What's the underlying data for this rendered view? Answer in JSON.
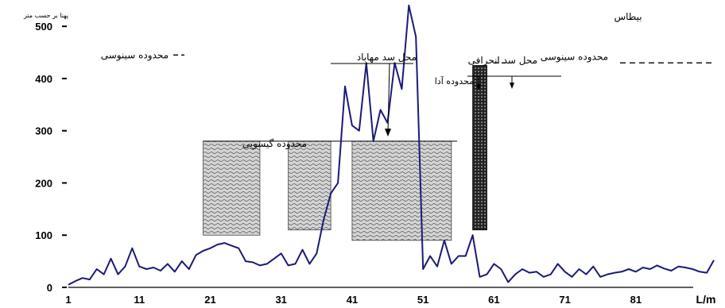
{
  "chart_data": {
    "type": "line",
    "ylabel": "پهنا بر حسب متر",
    "top_right_label": "بیطاس",
    "xlabel_end": "L/m",
    "x_ticks": [
      "1",
      "11",
      "21",
      "31",
      "41",
      "51",
      "61",
      "71",
      "81"
    ],
    "y_ticks": [
      "0",
      "100",
      "200",
      "300",
      "400",
      "500"
    ],
    "xlim": [
      1,
      92
    ],
    "ylim": [
      0,
      520
    ],
    "series": [
      {
        "color": "#1a1a7a",
        "x": [
          1,
          2,
          3,
          4,
          5,
          6,
          7,
          8,
          9,
          10,
          11,
          12,
          13,
          14,
          15,
          16,
          17,
          18,
          19,
          20,
          21,
          22,
          23,
          24,
          25,
          26,
          27,
          28,
          29,
          30,
          31,
          32,
          33,
          34,
          35,
          36,
          37,
          38,
          39,
          40,
          41,
          42,
          43,
          44,
          45,
          46,
          47,
          48,
          49,
          50,
          51,
          52,
          53,
          54,
          55,
          56,
          57,
          58,
          59,
          60,
          61,
          62,
          63,
          64,
          65,
          66,
          67,
          68,
          69,
          70,
          71,
          72,
          73,
          74,
          75,
          76,
          77,
          78,
          79,
          80,
          81,
          82,
          83,
          84,
          85,
          86,
          87,
          88,
          89,
          90,
          91,
          92
        ],
        "values": [
          5,
          12,
          18,
          15,
          35,
          25,
          55,
          25,
          40,
          75,
          40,
          35,
          38,
          32,
          45,
          30,
          50,
          35,
          62,
          70,
          75,
          82,
          85,
          80,
          75,
          50,
          48,
          42,
          45,
          55,
          65,
          42,
          45,
          72,
          45,
          65,
          130,
          180,
          200,
          385,
          310,
          300,
          430,
          280,
          340,
          315,
          430,
          380,
          540,
          480,
          35,
          60,
          40,
          90,
          45,
          60,
          60,
          100,
          20,
          25,
          45,
          35,
          10,
          25,
          35,
          28,
          30,
          20,
          25,
          45,
          30,
          20,
          35,
          25,
          40,
          20,
          25,
          28,
          30,
          35,
          30,
          38,
          35,
          42,
          36,
          32,
          40,
          38,
          35,
          30,
          28,
          52
        ]
      }
    ],
    "hatched_regions": [
      {
        "x0": 20,
        "x1": 28,
        "y0": 100,
        "y1": 280
      },
      {
        "x0": 32,
        "x1": 38,
        "y0": 110,
        "y1": 280
      },
      {
        "x0": 41,
        "x1": 55,
        "y0": 90,
        "y1": 280
      }
    ],
    "dark_bar": {
      "x0": 58,
      "x1": 60,
      "y0": 110,
      "y1": 425
    },
    "annotations": {
      "sinusoidal_left": "محدوده سینوسی",
      "sinusoidal_right": "محدوده سینوسی",
      "gypsum": "محدوده گیسویی",
      "mahabad_dam": "محل سد مهاباد",
      "diversion_dam": "محل سد انحرافی",
      "ada_range": "محدوده آدا",
      "sinusoidal_level": 445,
      "sinusoidal_right_level": 430
    }
  }
}
